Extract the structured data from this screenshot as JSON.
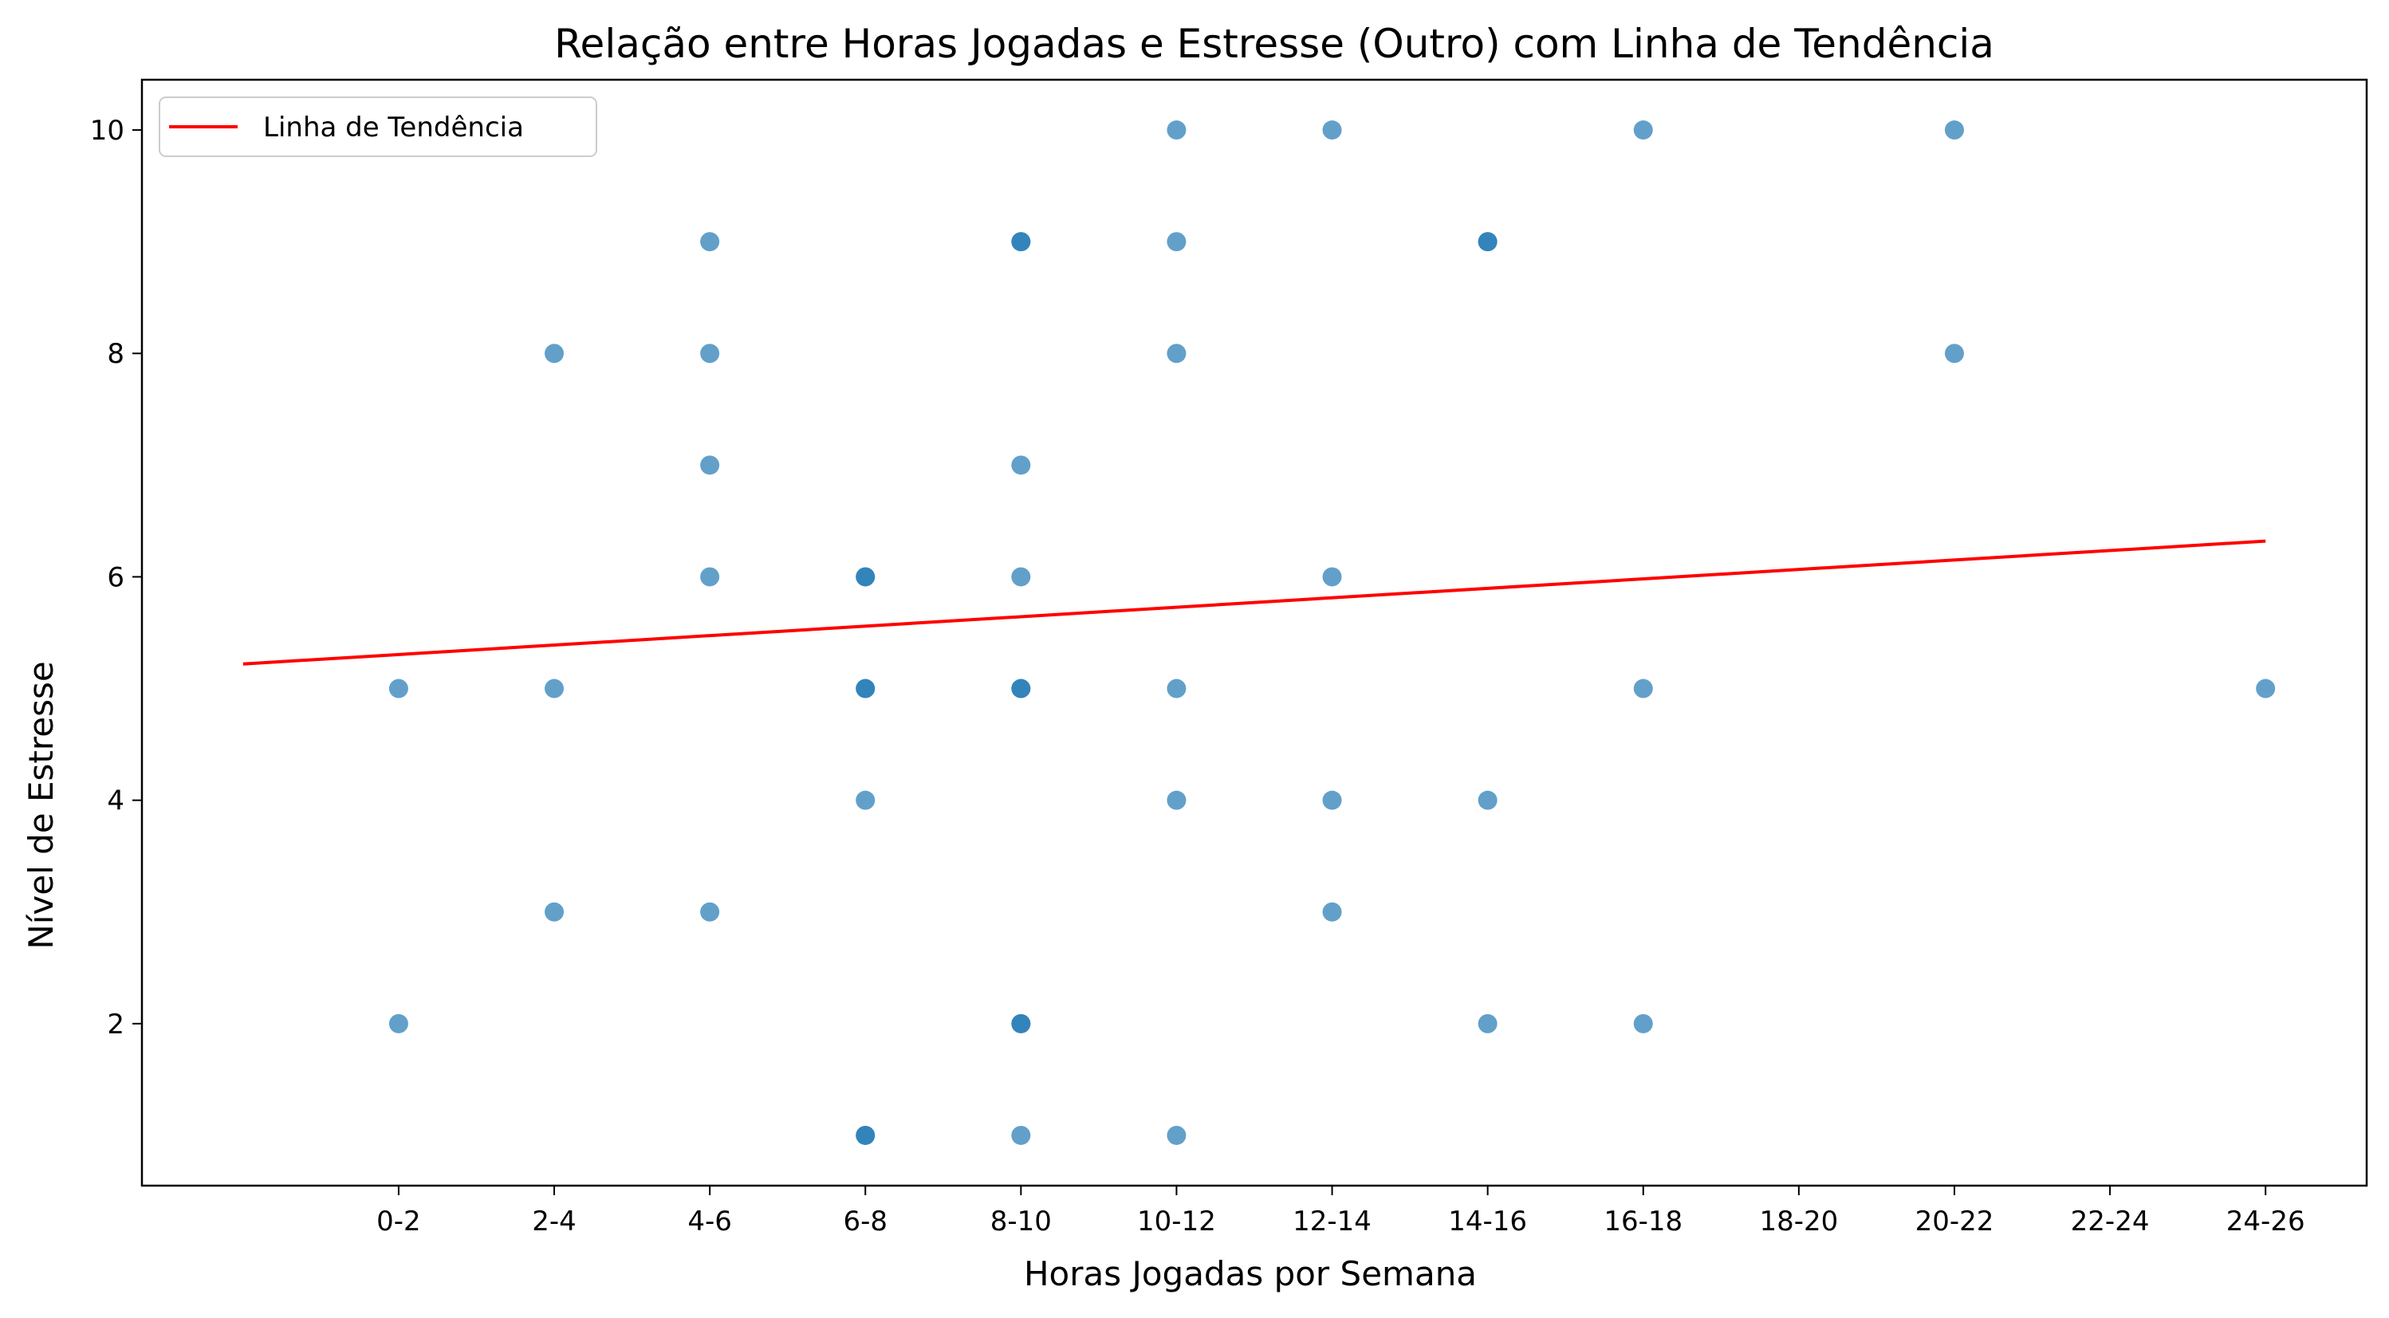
{
  "chart_data": {
    "type": "scatter",
    "title": "Relação entre Horas Jogadas e Estresse (Outro) com Linha de Tendência",
    "xlabel": "Horas Jogadas por Semana",
    "ylabel": "Nível de Estresse",
    "x_categories": [
      "0-2",
      "2-4",
      "4-6",
      "6-8",
      "8-10",
      "10-12",
      "12-14",
      "14-16",
      "16-18",
      "18-20",
      "20-22",
      "22-24",
      "24-26"
    ],
    "y_ticks": [
      2,
      4,
      6,
      8,
      10
    ],
    "xlim": [
      -1.65,
      12.65
    ],
    "ylim": [
      0.55,
      10.45
    ],
    "grid": false,
    "legend": {
      "position": "top-left",
      "entries": [
        "Linha de Tendência"
      ]
    },
    "points": [
      {
        "x": "0-2",
        "y": 5
      },
      {
        "x": "0-2",
        "y": 2
      },
      {
        "x": "2-4",
        "y": 8
      },
      {
        "x": "2-4",
        "y": 5
      },
      {
        "x": "2-4",
        "y": 3
      },
      {
        "x": "4-6",
        "y": 9
      },
      {
        "x": "4-6",
        "y": 8
      },
      {
        "x": "4-6",
        "y": 7
      },
      {
        "x": "4-6",
        "y": 6
      },
      {
        "x": "4-6",
        "y": 3
      },
      {
        "x": "6-8",
        "y": 6
      },
      {
        "x": "6-8",
        "y": 6
      },
      {
        "x": "6-8",
        "y": 5
      },
      {
        "x": "6-8",
        "y": 5
      },
      {
        "x": "6-8",
        "y": 4
      },
      {
        "x": "6-8",
        "y": 1
      },
      {
        "x": "6-8",
        "y": 1
      },
      {
        "x": "8-10",
        "y": 9
      },
      {
        "x": "8-10",
        "y": 9
      },
      {
        "x": "8-10",
        "y": 7
      },
      {
        "x": "8-10",
        "y": 6
      },
      {
        "x": "8-10",
        "y": 5
      },
      {
        "x": "8-10",
        "y": 5
      },
      {
        "x": "8-10",
        "y": 2
      },
      {
        "x": "8-10",
        "y": 2
      },
      {
        "x": "8-10",
        "y": 1
      },
      {
        "x": "10-12",
        "y": 10
      },
      {
        "x": "10-12",
        "y": 9
      },
      {
        "x": "10-12",
        "y": 8
      },
      {
        "x": "10-12",
        "y": 5
      },
      {
        "x": "10-12",
        "y": 4
      },
      {
        "x": "10-12",
        "y": 1
      },
      {
        "x": "12-14",
        "y": 10
      },
      {
        "x": "12-14",
        "y": 6
      },
      {
        "x": "12-14",
        "y": 4
      },
      {
        "x": "12-14",
        "y": 3
      },
      {
        "x": "14-16",
        "y": 9
      },
      {
        "x": "14-16",
        "y": 9
      },
      {
        "x": "14-16",
        "y": 4
      },
      {
        "x": "14-16",
        "y": 2
      },
      {
        "x": "16-18",
        "y": 10
      },
      {
        "x": "16-18",
        "y": 5
      },
      {
        "x": "16-18",
        "y": 2
      },
      {
        "x": "20-22",
        "y": 10
      },
      {
        "x": "20-22",
        "y": 8
      },
      {
        "x": "24-26",
        "y": 5
      }
    ],
    "trend_line": {
      "x_start": -1,
      "y_start": 5.22,
      "x_end": 12,
      "y_end": 6.32
    },
    "colors": {
      "points": "#1f77b4",
      "trend_line": "#ff0000"
    }
  }
}
